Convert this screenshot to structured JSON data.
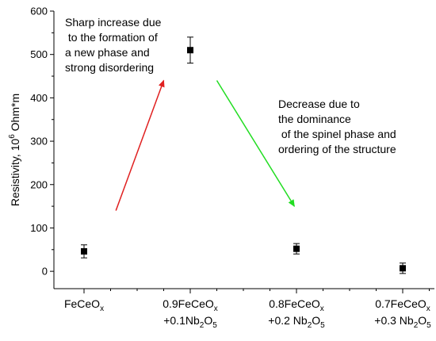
{
  "chart_data": {
    "type": "scatter",
    "title": "",
    "ylabel": {
      "pre": "Resistivity, 10",
      "sup": "6",
      "post": " Ohm*m"
    },
    "ylim": [
      -40,
      600
    ],
    "yticks": [
      0,
      100,
      200,
      300,
      400,
      500,
      600
    ],
    "categories": [
      {
        "lines": [
          [
            {
              "t": "FeCeO"
            },
            {
              "t": "x",
              "sub": true
            }
          ]
        ]
      },
      {
        "lines": [
          [
            {
              "t": "0.9FeCeO"
            },
            {
              "t": "x",
              "sub": true
            }
          ],
          [
            {
              "t": "+0.1Nb"
            },
            {
              "t": "2",
              "sub": true
            },
            {
              "t": "O"
            },
            {
              "t": "5",
              "sub": true
            }
          ]
        ]
      },
      {
        "lines": [
          [
            {
              "t": "0.8FeCeO"
            },
            {
              "t": "x",
              "sub": true
            }
          ],
          [
            {
              "t": "+0.2 Nb"
            },
            {
              "t": "2",
              "sub": true
            },
            {
              "t": "O"
            },
            {
              "t": "5",
              "sub": true
            }
          ]
        ]
      },
      {
        "lines": [
          [
            {
              "t": "0.7FeCeO"
            },
            {
              "t": "x",
              "sub": true
            }
          ],
          [
            {
              "t": "+0.3 Nb"
            },
            {
              "t": "2",
              "sub": true
            },
            {
              "t": "O"
            },
            {
              "t": "5",
              "sub": true
            }
          ]
        ]
      }
    ],
    "values": [
      46,
      510,
      52,
      7
    ],
    "errors": [
      15,
      30,
      12,
      12
    ],
    "marker_color": "#000000",
    "annotations": [
      {
        "lines": [
          "Sharp increase due",
          " to the formation of",
          "a new phase and",
          "strong disordering"
        ]
      },
      {
        "lines": [
          "Decrease due to",
          "the dominance",
          " of the spinel phase and",
          "ordering of the structure"
        ]
      }
    ],
    "arrows": [
      {
        "color": "#e02020",
        "from": [
          0.3,
          140
        ],
        "to": [
          0.75,
          440
        ]
      },
      {
        "color": "#22dd22",
        "from": [
          1.25,
          440
        ],
        "to": [
          1.98,
          150
        ]
      }
    ]
  }
}
